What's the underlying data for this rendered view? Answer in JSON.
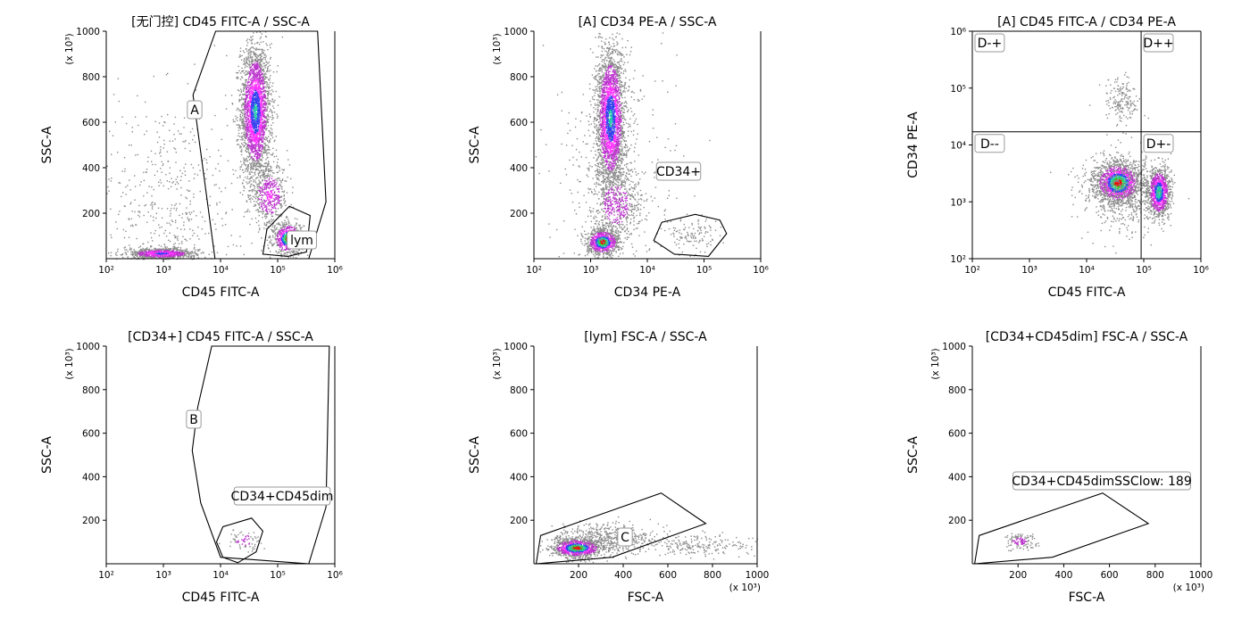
{
  "chart_data": [
    {
      "type": "scatter",
      "title": "[无门控] CD45 FITC-A / SSC-A",
      "xlabel": "CD45 FITC-A",
      "ylabel": "SSC-A",
      "yunit": "(x 10³)",
      "xscale": "log",
      "xlim": [
        100,
        1000000
      ],
      "yscale": "linear",
      "ylim": [
        0,
        1000
      ],
      "xticks": [
        "10²",
        "10³",
        "10⁴",
        "10⁵",
        "10⁶"
      ],
      "yticks": [
        "200",
        "400",
        "600",
        "800",
        "1000"
      ],
      "gates": [
        {
          "name": "A",
          "vertices": [
            [
              8000,
              0
            ],
            [
              3300,
              720
            ],
            [
              8200,
              1000
            ],
            [
              500000,
              1000
            ],
            [
              700000,
              250
            ],
            [
              350000,
              0
            ]
          ]
        },
        {
          "name": "lym",
          "vertices": [
            [
              55000,
              20
            ],
            [
              65000,
              130
            ],
            [
              160000,
              230
            ],
            [
              370000,
              190
            ],
            [
              320000,
              30
            ],
            [
              150000,
              10
            ]
          ]
        }
      ],
      "populations": [
        {
          "x": 40000,
          "y": 650,
          "sx": 0.13,
          "sy": 150,
          "n": 2600,
          "peak": 0.75
        },
        {
          "x": 70000,
          "y": 280,
          "sx": 0.17,
          "sy": 70,
          "n": 500,
          "peak": 0.45
        },
        {
          "x": 150000,
          "y": 90,
          "sx": 0.13,
          "sy": 35,
          "n": 700,
          "peak": 1.0
        },
        {
          "x": 900,
          "y": 25,
          "sx": 0.3,
          "sy": 12,
          "n": 800,
          "peak": 0.65
        },
        {
          "x": 1200,
          "y": 250,
          "sx": 0.6,
          "sy": 250,
          "n": 500,
          "peak": 0.08
        }
      ]
    },
    {
      "type": "scatter",
      "title": "[A] CD34 PE-A / SSC-A",
      "xlabel": "CD34 PE-A",
      "ylabel": "SSC-A",
      "yunit": "(x 10³)",
      "xscale": "log",
      "xlim": [
        100,
        1000000
      ],
      "yscale": "linear",
      "ylim": [
        0,
        1000
      ],
      "xticks": [
        "10²",
        "10³",
        "10⁴",
        "10⁵",
        "10⁶"
      ],
      "yticks": [
        "200",
        "400",
        "600",
        "800",
        "1000"
      ],
      "gates": [
        {
          "name": "CD34+",
          "vertices": [
            [
              13000,
              80
            ],
            [
              18000,
              160
            ],
            [
              70000,
              195
            ],
            [
              190000,
              170
            ],
            [
              250000,
              110
            ],
            [
              120000,
              10
            ],
            [
              30000,
              20
            ]
          ]
        }
      ],
      "populations": [
        {
          "x": 2200,
          "y": 620,
          "sx": 0.13,
          "sy": 160,
          "n": 2600,
          "peak": 0.75
        },
        {
          "x": 1600,
          "y": 75,
          "sx": 0.14,
          "sy": 28,
          "n": 900,
          "peak": 1.0
        },
        {
          "x": 2800,
          "y": 240,
          "sx": 0.22,
          "sy": 80,
          "n": 500,
          "peak": 0.4
        },
        {
          "x": 60000,
          "y": 110,
          "sx": 0.22,
          "sy": 40,
          "n": 120,
          "peak": 0.05
        },
        {
          "x": 3000,
          "y": 350,
          "sx": 0.55,
          "sy": 250,
          "n": 400,
          "peak": 0.07
        }
      ]
    },
    {
      "type": "scatter",
      "title": "[A] CD45 FITC-A / CD34 PE-A",
      "xlabel": "CD45 FITC-A",
      "ylabel": "CD34 PE-A",
      "xscale": "log",
      "xlim": [
        100,
        1000000
      ],
      "yscale": "log",
      "ylim": [
        100,
        1000000
      ],
      "xticks": [
        "10²",
        "10³",
        "10⁴",
        "10⁵",
        "10⁶"
      ],
      "yticks": [
        "10²",
        "10³",
        "10⁴",
        "10⁵",
        "10⁶"
      ],
      "quadrant_x": 90000,
      "quadrant_y": 17000,
      "quadrants": [
        "D-+",
        "D++",
        "D--",
        "D+-"
      ],
      "populations": [
        {
          "x": 35000,
          "y": 2200,
          "sx": 0.2,
          "sy": 0.18,
          "n": 1500,
          "peak": 1.0
        },
        {
          "x": 180000,
          "y": 1500,
          "sx": 0.1,
          "sy": 0.22,
          "n": 1100,
          "peak": 0.85
        },
        {
          "x": 40000,
          "y": 60000,
          "sx": 0.15,
          "sy": 0.2,
          "n": 180,
          "peak": 0.05
        },
        {
          "x": 40000,
          "y": 1500,
          "sx": 0.35,
          "sy": 0.35,
          "n": 600,
          "peak": 0.15
        }
      ]
    },
    {
      "type": "scatter",
      "title": "[CD34+] CD45 FITC-A / SSC-A",
      "xlabel": "CD45 FITC-A",
      "ylabel": "SSC-A",
      "yunit": "(x 10³)",
      "xscale": "log",
      "xlim": [
        100,
        1000000
      ],
      "yscale": "linear",
      "ylim": [
        0,
        1000
      ],
      "xticks": [
        "10²",
        "10³",
        "10⁴",
        "10⁵",
        "10⁶"
      ],
      "yticks": [
        "200",
        "400",
        "600",
        "800",
        "1000"
      ],
      "gates": [
        {
          "name": "B",
          "vertices": [
            [
              4000,
              720
            ],
            [
              3200,
              520
            ],
            [
              4500,
              280
            ],
            [
              10000,
              30
            ],
            [
              350000,
              0
            ],
            [
              700000,
              260
            ],
            [
              800000,
              1000
            ],
            [
              7000,
              1000
            ]
          ]
        },
        {
          "name": "CD34+CD45dim",
          "vertices": [
            [
              8500,
              100
            ],
            [
              11000,
              170
            ],
            [
              35000,
              210
            ],
            [
              55000,
              150
            ],
            [
              42000,
              55
            ],
            [
              20000,
              5
            ],
            [
              11000,
              30
            ]
          ]
        }
      ],
      "populations": [
        {
          "x": 25000,
          "y": 110,
          "sx": 0.15,
          "sy": 25,
          "n": 70,
          "peak": 0.35
        }
      ]
    },
    {
      "type": "scatter",
      "title": "[lym] FSC-A / SSC-A",
      "xlabel": "FSC-A",
      "ylabel": "SSC-A",
      "xunit": "(x 10³)",
      "yunit": "(x 10³)",
      "xscale": "linear",
      "xlim": [
        0,
        1000
      ],
      "yscale": "linear",
      "ylim": [
        0,
        1000
      ],
      "xticks": [
        "200",
        "400",
        "600",
        "800",
        "1000"
      ],
      "yticks": [
        "200",
        "400",
        "600",
        "800",
        "1000"
      ],
      "gates": [
        {
          "name": "C",
          "vertices": [
            [
              30,
              130
            ],
            [
              570,
              325
            ],
            [
              770,
              185
            ],
            [
              350,
              30
            ],
            [
              10,
              0
            ]
          ]
        }
      ],
      "populations": [
        {
          "x": 190,
          "y": 75,
          "sx": 55,
          "sy": 22,
          "n": 1100,
          "peak": 1.0
        },
        {
          "x": 330,
          "y": 120,
          "sx": 100,
          "sy": 35,
          "n": 500,
          "peak": 0.18
        },
        {
          "x": 740,
          "y": 90,
          "sx": 140,
          "sy": 25,
          "n": 220,
          "peak": 0.04
        }
      ]
    },
    {
      "type": "scatter",
      "title": "[CD34+CD45dim] FSC-A / SSC-A",
      "xlabel": "FSC-A",
      "ylabel": "SSC-A",
      "xunit": "(x 10³)",
      "yunit": "(x 10³)",
      "xscale": "linear",
      "xlim": [
        0,
        1000
      ],
      "yscale": "linear",
      "ylim": [
        0,
        1000
      ],
      "xticks": [
        "200",
        "400",
        "600",
        "800",
        "1000"
      ],
      "yticks": [
        "200",
        "400",
        "600",
        "800",
        "1000"
      ],
      "gates": [
        {
          "name": "CD34+CD45dimSSClow: 189",
          "vertices": [
            [
              30,
              130
            ],
            [
              570,
              325
            ],
            [
              770,
              185
            ],
            [
              350,
              30
            ],
            [
              10,
              0
            ]
          ]
        }
      ],
      "populations": [
        {
          "x": 205,
          "y": 105,
          "sx": 35,
          "sy": 20,
          "n": 130,
          "peak": 0.35
        }
      ]
    }
  ]
}
